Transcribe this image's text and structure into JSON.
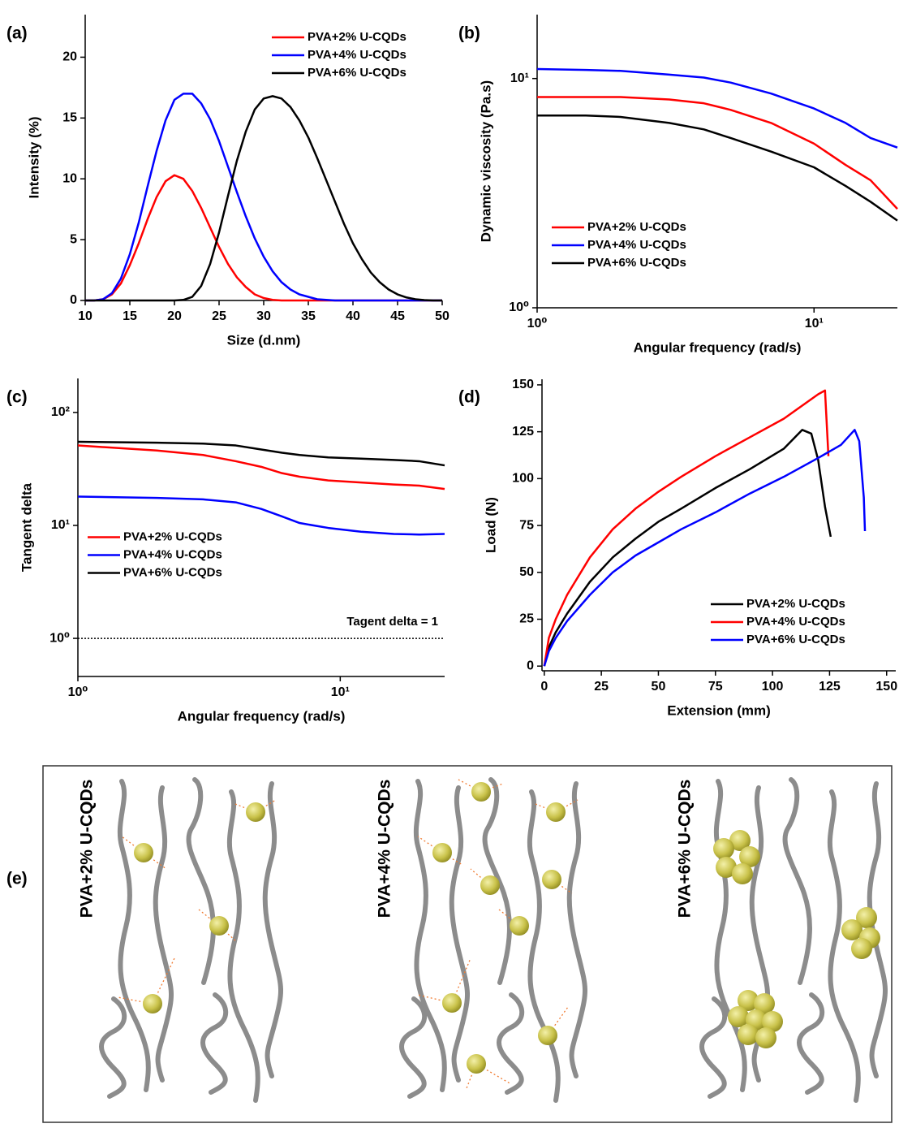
{
  "chart_data": [
    {
      "type": "line",
      "panel_label": "(a)",
      "xlabel": "Size (d.nm)",
      "ylabel": "Intensity (%)",
      "x": [
        10,
        11,
        12,
        13,
        14,
        15,
        16,
        17,
        18,
        19,
        20,
        21,
        22,
        23,
        24,
        25,
        26,
        27,
        28,
        29,
        30,
        31,
        32,
        33,
        34,
        35,
        36,
        37,
        38,
        39,
        40,
        41,
        42,
        43,
        44,
        45,
        46,
        47,
        48,
        49,
        50
      ],
      "series": [
        {
          "name": "PVA+2% U-CQDs",
          "color": "#ff0000",
          "values": [
            0,
            0,
            0.1,
            0.5,
            1.4,
            2.9,
            4.7,
            6.7,
            8.5,
            9.8,
            10.3,
            10.0,
            9.0,
            7.6,
            6.0,
            4.4,
            3.0,
            1.9,
            1.1,
            0.5,
            0.2,
            0.05,
            0,
            0,
            0,
            0,
            0,
            0,
            0,
            0,
            0,
            0,
            0,
            0,
            0,
            0,
            0,
            0,
            0,
            0,
            0
          ]
        },
        {
          "name": "PVA+4% U-CQDs",
          "color": "#0000ff",
          "values": [
            0,
            0,
            0.1,
            0.6,
            1.8,
            3.8,
            6.4,
            9.4,
            12.3,
            14.8,
            16.5,
            17.0,
            17.0,
            16.2,
            14.9,
            13.1,
            11.0,
            8.9,
            6.9,
            5.1,
            3.6,
            2.4,
            1.5,
            0.9,
            0.5,
            0.3,
            0.1,
            0.05,
            0,
            0,
            0,
            0,
            0,
            0,
            0,
            0,
            0,
            0,
            0,
            0,
            0
          ]
        },
        {
          "name": "PVA+6% U-CQDs",
          "color": "#000000",
          "values": [
            0,
            0,
            0,
            0,
            0,
            0,
            0,
            0,
            0,
            0,
            0,
            0.05,
            0.3,
            1.2,
            3.0,
            5.6,
            8.6,
            11.5,
            13.9,
            15.7,
            16.6,
            16.8,
            16.6,
            15.9,
            14.8,
            13.4,
            11.7,
            9.9,
            8.1,
            6.3,
            4.7,
            3.4,
            2.3,
            1.5,
            0.9,
            0.5,
            0.25,
            0.1,
            0.03,
            0,
            0
          ]
        }
      ],
      "xlim": [
        10,
        50
      ],
      "xticks": [
        10,
        15,
        20,
        25,
        30,
        35,
        40,
        45,
        50
      ],
      "ylim": [
        0,
        23.5
      ],
      "yticks": [
        0,
        5,
        10,
        15,
        20
      ],
      "legend": "upper right"
    },
    {
      "type": "line",
      "panel_label": "(b)",
      "xlabel": "Angular frequency (rad/s)",
      "ylabel": "Dynamic viscosity (Pa.s)",
      "xscale": "log",
      "yscale": "log",
      "x": [
        1,
        1.5,
        2,
        3,
        4,
        5,
        7,
        10,
        13,
        16,
        20
      ],
      "series": [
        {
          "name": "PVA+2% U-CQDs",
          "color": "#ff0000",
          "values": [
            8.3,
            8.3,
            8.3,
            8.1,
            7.8,
            7.3,
            6.4,
            5.2,
            4.2,
            3.6,
            2.7
          ]
        },
        {
          "name": "PVA+4% U-CQDs",
          "color": "#0000ff",
          "values": [
            11,
            10.9,
            10.8,
            10.4,
            10.1,
            9.6,
            8.6,
            7.4,
            6.4,
            5.5,
            5.0
          ]
        },
        {
          "name": "PVA+6% U-CQDs",
          "color": "#000000",
          "values": [
            6.9,
            6.9,
            6.8,
            6.4,
            6.0,
            5.5,
            4.8,
            4.1,
            3.4,
            2.9,
            2.4
          ]
        }
      ],
      "xlim": [
        1,
        20
      ],
      "xticks": [
        {
          "value": 1,
          "label": "10⁰"
        },
        {
          "value": 10,
          "label": "10¹"
        }
      ],
      "ylim": [
        1,
        19
      ],
      "yticks": [
        {
          "value": 1,
          "label": "10⁰"
        },
        {
          "value": 10,
          "label": "10¹"
        }
      ],
      "legend": "lower left"
    },
    {
      "type": "line",
      "panel_label": "(c)",
      "xlabel": "Angular frequency (rad/s)",
      "ylabel": "Tangent delta",
      "xscale": "log",
      "yscale": "log",
      "x": [
        1,
        2,
        3,
        4,
        5,
        6,
        7,
        9,
        12,
        16,
        20,
        25
      ],
      "series": [
        {
          "name": "PVA+2% U-CQDs",
          "color": "#ff0000",
          "values": [
            51,
            46,
            42,
            37,
            33,
            29,
            27,
            25,
            24,
            23,
            22.5,
            21
          ]
        },
        {
          "name": "PVA+4% U-CQDs",
          "color": "#0000ff",
          "values": [
            18,
            17.5,
            17,
            16,
            14,
            12,
            10.5,
            9.5,
            8.8,
            8.4,
            8.3,
            8.4
          ]
        },
        {
          "name": "PVA+6% U-CQDs",
          "color": "#000000",
          "values": [
            55,
            54,
            53,
            51,
            47,
            44,
            42,
            40,
            39,
            38,
            37,
            34
          ]
        }
      ],
      "hline": {
        "value": 1,
        "label": "Tagent delta = 1"
      },
      "xlim": [
        1,
        25
      ],
      "xticks": [
        {
          "value": 1,
          "label": "10⁰"
        },
        {
          "value": 10,
          "label": "10¹"
        }
      ],
      "ylim": [
        0.46,
        200
      ],
      "yticks": [
        {
          "value": 1,
          "label": "10⁰"
        },
        {
          "value": 10,
          "label": "10¹"
        },
        {
          "value": 100,
          "label": "10²"
        }
      ],
      "legend": "center left"
    },
    {
      "type": "line",
      "panel_label": "(d)",
      "xlabel": "Extension (mm)",
      "ylabel": "Load (N)",
      "series": [
        {
          "name": "PVA+2% U-CQDs",
          "color": "#000000",
          "x": [
            0,
            2,
            5,
            10,
            20,
            30,
            40,
            50,
            60,
            75,
            90,
            105,
            113,
            117,
            120,
            123,
            125.5
          ],
          "values": [
            0,
            10,
            18,
            28,
            45,
            58,
            68,
            77,
            84,
            95,
            105,
            116,
            126,
            124,
            110,
            85,
            69
          ]
        },
        {
          "name": "PVA+4% U-CQDs",
          "color": "#ff0000",
          "x": [
            0,
            2,
            5,
            10,
            20,
            30,
            40,
            50,
            60,
            75,
            90,
            105,
            120,
            123,
            124.5
          ],
          "values": [
            0,
            15,
            25,
            38,
            58,
            73,
            84,
            93,
            101,
            112,
            122,
            132,
            145,
            147,
            112
          ]
        },
        {
          "name": "PVA+6% U-CQDs",
          "color": "#0000ff",
          "x": [
            0,
            2,
            5,
            10,
            20,
            30,
            40,
            50,
            60,
            75,
            90,
            105,
            120,
            130,
            136,
            138,
            140,
            140.5
          ],
          "values": [
            0,
            8,
            15,
            24,
            38,
            50,
            59,
            66,
            73,
            82,
            92,
            101,
            111,
            118,
            126,
            120,
            90,
            72
          ]
        }
      ],
      "xlim": [
        -1,
        154
      ],
      "xticks": [
        0,
        25,
        50,
        75,
        100,
        125,
        150
      ],
      "ylim": [
        -2.5,
        153
      ],
      "yticks": [
        0,
        25,
        50,
        75,
        100,
        125,
        150
      ],
      "legend": "lower right"
    }
  ],
  "diagram": {
    "label": "(e)",
    "panels": [
      {
        "label": "PVA+2% U-CQDs"
      },
      {
        "label": "PVA+4% U-CQDs"
      },
      {
        "label": "PVA+6% U-CQDs"
      }
    ]
  }
}
